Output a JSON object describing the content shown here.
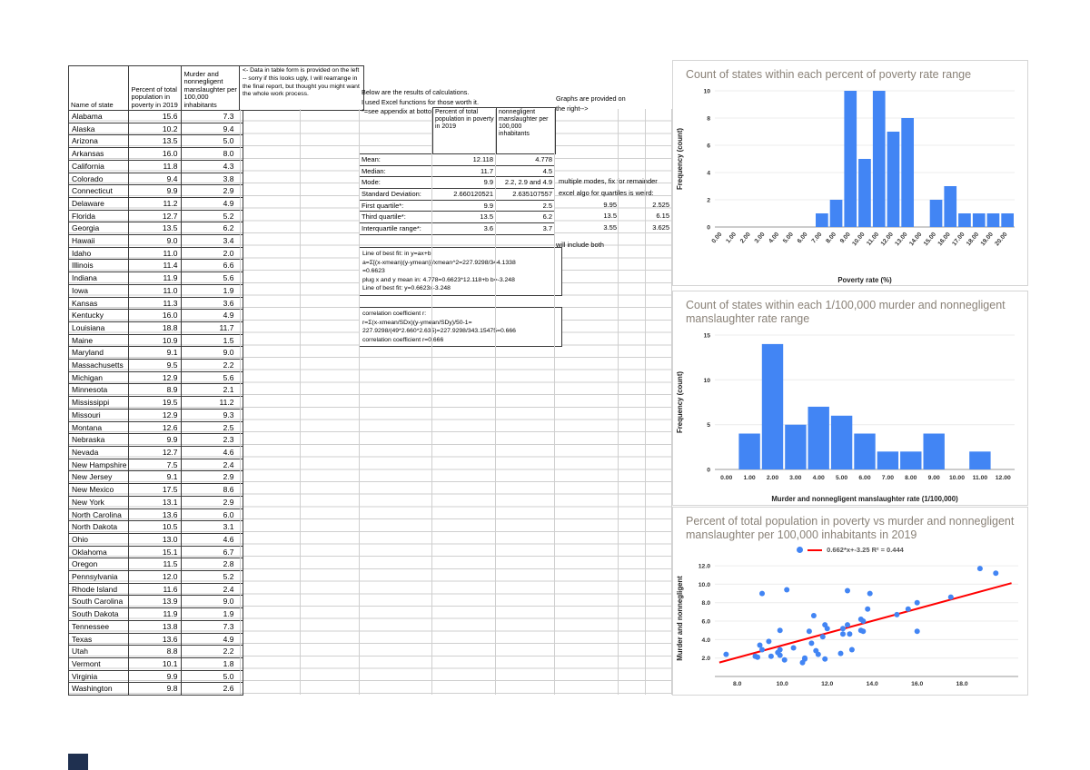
{
  "table": {
    "headers": [
      "Name of state",
      "Percent of total population in poverty in 2019",
      "Murder and nonnegligent manslaughter per 100,000 inhabitants"
    ],
    "rows": [
      [
        "Alabama",
        "15.6",
        "7.3"
      ],
      [
        "Alaska",
        "10.2",
        "9.4"
      ],
      [
        "Arizona",
        "13.5",
        "5.0"
      ],
      [
        "Arkansas",
        "16.0",
        "8.0"
      ],
      [
        "California",
        "11.8",
        "4.3"
      ],
      [
        "Colorado",
        "9.4",
        "3.8"
      ],
      [
        "Connecticut",
        "9.9",
        "2.9"
      ],
      [
        "Delaware",
        "11.2",
        "4.9"
      ],
      [
        "Florida",
        "12.7",
        "5.2"
      ],
      [
        "Georgia",
        "13.5",
        "6.2"
      ],
      [
        "Hawaii",
        "9.0",
        "3.4"
      ],
      [
        "Idaho",
        "11.0",
        "2.0"
      ],
      [
        "Illinois",
        "11.4",
        "6.6"
      ],
      [
        "Indiana",
        "11.9",
        "5.6"
      ],
      [
        "Iowa",
        "11.0",
        "1.9"
      ],
      [
        "Kansas",
        "11.3",
        "3.6"
      ],
      [
        "Kentucky",
        "16.0",
        "4.9"
      ],
      [
        "Louisiana",
        "18.8",
        "11.7"
      ],
      [
        "Maine",
        "10.9",
        "1.5"
      ],
      [
        "Maryland",
        "9.1",
        "9.0"
      ],
      [
        "Massachusetts",
        "9.5",
        "2.2"
      ],
      [
        "Michigan",
        "12.9",
        "5.6"
      ],
      [
        "Minnesota",
        "8.9",
        "2.1"
      ],
      [
        "Mississippi",
        "19.5",
        "11.2"
      ],
      [
        "Missouri",
        "12.9",
        "9.3"
      ],
      [
        "Montana",
        "12.6",
        "2.5"
      ],
      [
        "Nebraska",
        "9.9",
        "2.3"
      ],
      [
        "Nevada",
        "12.7",
        "4.6"
      ],
      [
        "New Hampshire",
        "7.5",
        "2.4"
      ],
      [
        "New Jersey",
        "9.1",
        "2.9"
      ],
      [
        "New Mexico",
        "17.5",
        "8.6"
      ],
      [
        "New York",
        "13.1",
        "2.9"
      ],
      [
        "North Carolina",
        "13.6",
        "6.0"
      ],
      [
        "North Dakota",
        "10.5",
        "3.1"
      ],
      [
        "Ohio",
        "13.0",
        "4.6"
      ],
      [
        "Oklahoma",
        "15.1",
        "6.7"
      ],
      [
        "Oregon",
        "11.5",
        "2.8"
      ],
      [
        "Pennsylvania",
        "12.0",
        "5.2"
      ],
      [
        "Rhode Island",
        "11.6",
        "2.4"
      ],
      [
        "South Carolina",
        "13.9",
        "9.0"
      ],
      [
        "South Dakota",
        "11.9",
        "1.9"
      ],
      [
        "Tennessee",
        "13.8",
        "7.3"
      ],
      [
        "Texas",
        "13.6",
        "4.9"
      ],
      [
        "Utah",
        "8.8",
        "2.2"
      ],
      [
        "Vermont",
        "10.1",
        "1.8"
      ],
      [
        "Virginia",
        "9.9",
        "5.0"
      ],
      [
        "Washington",
        "9.8",
        "2.6"
      ]
    ]
  },
  "notes": {
    "table_note": "<- Data in table form is provided on the left -- sorry if this looks ugly, I will rearrange in the final report, but thought you might want the whole work process.",
    "calc_intro": [
      "Below are the results of calculations.",
      "I used Excel functions for those worth it.",
      "*=see appendix at bottom"
    ],
    "graphs_note": [
      "Graphs are provided on",
      "the right-->"
    ],
    "will_include": "will include both",
    "bestfit": [
      "Line of best fit: in y=ax+b:",
      "a=Σ[(x-xmean)(y-ymean)]/xmean^2=227.9298/344.1338",
      "=0.6623",
      "plug x and y mean in: 4.778=0.6623*12.118+b b=-3.248",
      "Line of best fit: y=0.6623x-3.248"
    ],
    "correlation": [
      "correlation coefficient r:",
      "r=Σ(x-xmean/SDx)(y-ymean/SDy)/50-1=",
      "227.9298/(49*2.660*2.635)=227.9298/343.15475=0.666",
      "correlation coefficient r=0.666"
    ]
  },
  "stats": {
    "col_headers": [
      "Percent of total population in poverty in 2019",
      "nonnegligent manslaughter per 100,000 inhabitants"
    ],
    "rows": [
      {
        "label": "Mean:",
        "poverty": "12.118",
        "murder": "4.778"
      },
      {
        "label": "Median:",
        "poverty": "11.7",
        "murder": "4.5"
      },
      {
        "label": "Mode:",
        "poverty": "9.9",
        "murder": "2.2, 2.9 and 4.9",
        "note": "multiple modes, fix for remainder"
      },
      {
        "label": "Standard Deviation:",
        "poverty": "2.660120521",
        "murder": "2.635107557",
        "note": "excel algo for quartiles is weird:"
      },
      {
        "label": "First quartile*:",
        "poverty": "9.9",
        "murder": "2.5",
        "extra1": "9.95",
        "extra2": "2.525"
      },
      {
        "label": "Third quartile*:",
        "poverty": "13.5",
        "murder": "6.2",
        "extra1": "13.5",
        "extra2": "6.15"
      },
      {
        "label": "Interquartile range*:",
        "poverty": "3.6",
        "murder": "3.7",
        "extra1": "3.55",
        "extra2": "3.625"
      }
    ]
  },
  "chart_data": [
    {
      "type": "bar",
      "title": "Count of states within each percent of poverty rate range",
      "xlabel": "Poverty rate (%)",
      "ylabel": "Frequency (count)",
      "categories": [
        "0.00",
        "1.00",
        "2.00",
        "3.00",
        "4.00",
        "5.00",
        "6.00",
        "7.00",
        "8.00",
        "9.00",
        "10.00",
        "11.00",
        "12.00",
        "13.00",
        "14.00",
        "15.00",
        "16.00",
        "17.00",
        "18.00",
        "19.00",
        "20.00"
      ],
      "values": [
        0,
        0,
        0,
        0,
        0,
        0,
        0,
        1,
        2,
        10,
        5,
        10,
        7,
        8,
        0,
        2,
        3,
        1,
        1,
        1,
        1
      ],
      "ylim": [
        0,
        10
      ],
      "yticks": [
        0,
        2,
        4,
        6,
        8,
        10
      ],
      "bar_color": "#4285f4"
    },
    {
      "type": "bar",
      "title": "Count of states within each 1/100,000 murder and nonnegligent manslaughter rate range",
      "xlabel": "Murder and nonnegligent manslaughter rate (1/100,000)",
      "ylabel": "Frequency (count)",
      "categories": [
        "0.00",
        "1.00",
        "2.00",
        "3.00",
        "4.00",
        "5.00",
        "6.00",
        "7.00",
        "8.00",
        "9.00",
        "10.00",
        "11.00",
        "12.00"
      ],
      "values": [
        0,
        4,
        14,
        5,
        7,
        6,
        4,
        2,
        2,
        4,
        0,
        2,
        0
      ],
      "ylim": [
        0,
        15
      ],
      "yticks": [
        0,
        5,
        10,
        15
      ],
      "bar_color": "#4285f4"
    },
    {
      "type": "scatter",
      "title": "Percent of total population in poverty vs murder and nonnegligent manslaughter per 100,000 inhabitants in 2019",
      "ylabel": "Murder and nonnegligent",
      "legend": "0.662*x+-3.25 R² = 0.444",
      "point_color": "#4285f4",
      "trendline": {
        "slope": 0.662,
        "intercept": -3.25,
        "color": "#ff0000"
      },
      "xlim": [
        7,
        20.5
      ],
      "ylim": [
        0,
        12.6
      ],
      "xticks": [
        8,
        10,
        12,
        14,
        16,
        18
      ],
      "yticks": [
        2,
        4,
        6,
        8,
        10,
        12
      ],
      "points": [
        [
          15.6,
          7.3
        ],
        [
          10.2,
          9.4
        ],
        [
          13.5,
          5.0
        ],
        [
          16.0,
          8.0
        ],
        [
          11.8,
          4.3
        ],
        [
          9.4,
          3.8
        ],
        [
          9.9,
          2.9
        ],
        [
          11.2,
          4.9
        ],
        [
          12.7,
          5.2
        ],
        [
          13.5,
          6.2
        ],
        [
          9.0,
          3.4
        ],
        [
          11.0,
          2.0
        ],
        [
          11.4,
          6.6
        ],
        [
          11.9,
          5.6
        ],
        [
          11.0,
          1.9
        ],
        [
          11.3,
          3.6
        ],
        [
          16.0,
          4.9
        ],
        [
          18.8,
          11.7
        ],
        [
          10.9,
          1.5
        ],
        [
          9.1,
          9.0
        ],
        [
          9.5,
          2.2
        ],
        [
          12.9,
          5.6
        ],
        [
          8.9,
          2.1
        ],
        [
          19.5,
          11.2
        ],
        [
          12.9,
          9.3
        ],
        [
          12.6,
          2.5
        ],
        [
          9.9,
          2.3
        ],
        [
          12.7,
          4.6
        ],
        [
          7.5,
          2.4
        ],
        [
          9.1,
          2.9
        ],
        [
          17.5,
          8.6
        ],
        [
          13.1,
          2.9
        ],
        [
          13.6,
          6.0
        ],
        [
          10.5,
          3.1
        ],
        [
          13.0,
          4.6
        ],
        [
          15.1,
          6.7
        ],
        [
          11.5,
          2.8
        ],
        [
          12.0,
          5.2
        ],
        [
          11.6,
          2.4
        ],
        [
          13.9,
          9.0
        ],
        [
          11.9,
          1.9
        ],
        [
          13.8,
          7.3
        ],
        [
          13.6,
          4.9
        ],
        [
          8.8,
          2.2
        ],
        [
          10.1,
          1.8
        ],
        [
          9.9,
          5.0
        ],
        [
          9.8,
          2.6
        ]
      ]
    }
  ]
}
